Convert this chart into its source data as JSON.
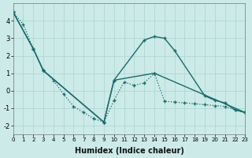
{
  "xlabel": "Humidex (Indice chaleur)",
  "xlim": [
    0,
    23
  ],
  "ylim": [
    -2.5,
    5.0
  ],
  "yticks": [
    -2,
    -1,
    0,
    1,
    2,
    3,
    4
  ],
  "xticks": [
    0,
    1,
    2,
    3,
    4,
    5,
    6,
    7,
    8,
    9,
    10,
    11,
    12,
    13,
    14,
    15,
    16,
    17,
    18,
    19,
    20,
    21,
    22,
    23
  ],
  "background_color": "#cceae8",
  "line_color": "#1a6b6b",
  "grid_color": "#aad4d2",
  "line1_x": [
    0,
    1,
    2,
    3,
    4,
    5,
    6,
    7,
    8,
    9,
    10,
    11,
    12,
    13,
    14,
    15,
    16,
    17,
    18,
    19,
    20,
    21,
    22,
    23
  ],
  "line1_y": [
    4.5,
    3.8,
    2.4,
    1.15,
    0.6,
    -0.2,
    -0.9,
    -1.25,
    -1.6,
    -1.8,
    -0.55,
    0.5,
    0.3,
    0.45,
    1.0,
    -0.6,
    -0.65,
    -0.7,
    -0.75,
    -0.8,
    -0.85,
    -0.9,
    -1.1,
    -1.25
  ],
  "line2_x": [
    0,
    2,
    3,
    9,
    10,
    13,
    14,
    15,
    16,
    19,
    20,
    21,
    22,
    23
  ],
  "line2_y": [
    4.5,
    2.4,
    1.15,
    -1.8,
    0.6,
    2.9,
    3.1,
    3.0,
    2.3,
    -0.3,
    -0.55,
    -0.7,
    -1.1,
    -1.25
  ],
  "line3_x": [
    0,
    2,
    3,
    9,
    10,
    14,
    23
  ],
  "line3_y": [
    4.5,
    2.4,
    1.15,
    -1.8,
    0.6,
    1.0,
    -1.25
  ]
}
